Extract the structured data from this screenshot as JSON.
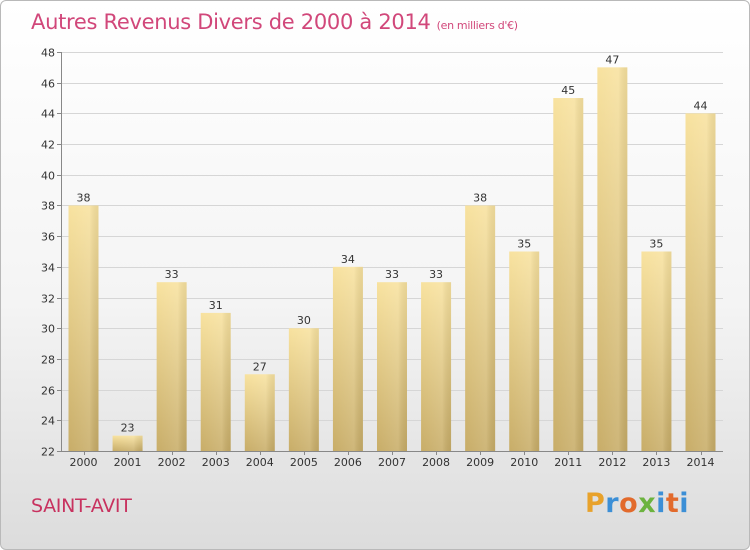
{
  "header": {
    "title": "Autres Revenus Divers de 2000 à 2014",
    "unit": "(en milliers d'€)"
  },
  "footer": {
    "commune": "SAINT-AVIT",
    "logo_text": "Proxiti"
  },
  "colors": {
    "title": "#d1477a",
    "commune": "#c8325f",
    "bar_light": "#f8e29f",
    "bar_dark": "#c8ad68",
    "logo_letters": [
      "#e8a22b",
      "#3c8fd6",
      "#e26a2c",
      "#6cb33f",
      "#3c8fd6",
      "#e26a2c",
      "#3c8fd6"
    ]
  },
  "chart_data": {
    "type": "bar",
    "title": "Autres Revenus Divers de 2000 à 2014",
    "subtitle": "(en milliers d'€)",
    "xlabel": "",
    "ylabel": "",
    "categories": [
      "2000",
      "2001",
      "2002",
      "2003",
      "2004",
      "2005",
      "2006",
      "2007",
      "2008",
      "2009",
      "2010",
      "2011",
      "2012",
      "2013",
      "2014"
    ],
    "values": [
      38,
      23,
      33,
      31,
      27,
      30,
      34,
      33,
      33,
      38,
      35,
      45,
      47,
      35,
      44
    ],
    "ylim": [
      22,
      48
    ],
    "yticks": [
      22,
      24,
      26,
      28,
      30,
      32,
      34,
      36,
      38,
      40,
      42,
      44,
      46,
      48
    ],
    "grid": true,
    "legend": "none"
  }
}
